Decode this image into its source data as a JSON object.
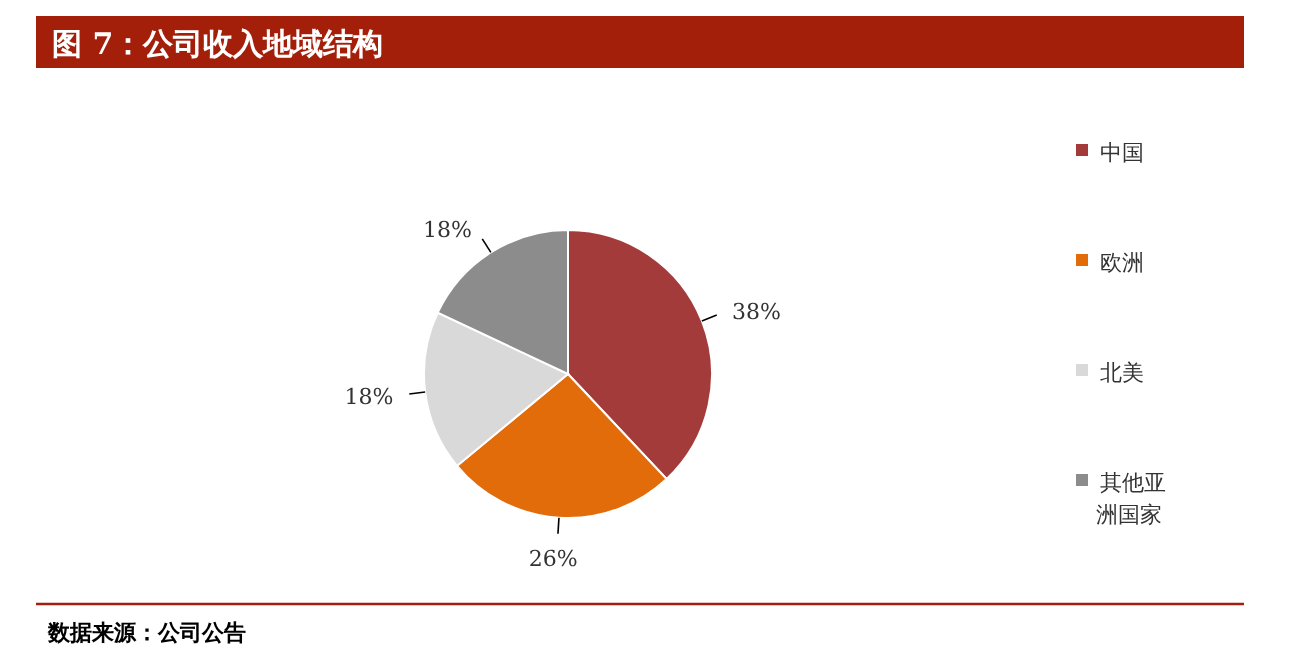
{
  "chart_data": {
    "type": "pie",
    "title": "图 7：公司收入地域结构",
    "categories": [
      "中国",
      "欧洲",
      "北美",
      "其他亚洲国家"
    ],
    "values": [
      38,
      26,
      18,
      18
    ],
    "colors": [
      "#a33b3a",
      "#e36c0a",
      "#d9d9d9",
      "#8c8c8c"
    ],
    "value_labels": [
      "38%",
      "26%",
      "18%",
      "18%"
    ],
    "legend": "right",
    "annotations": [
      "数据来源：公司公告"
    ]
  }
}
